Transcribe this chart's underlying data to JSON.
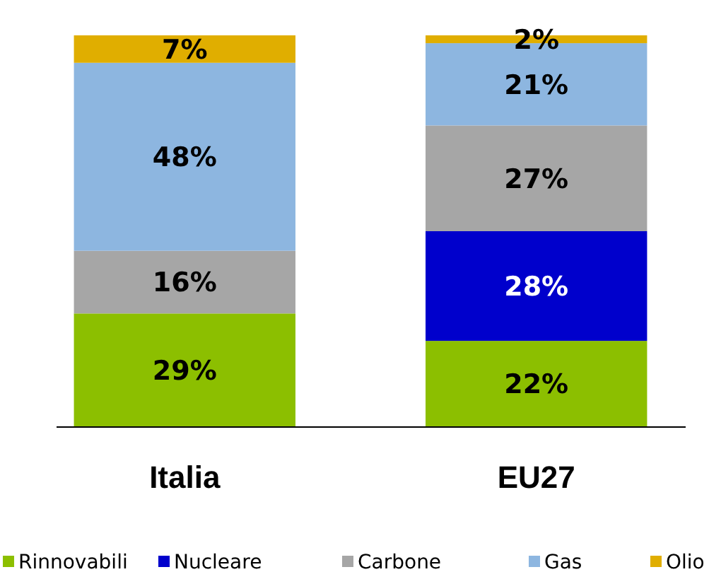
{
  "chart_data": {
    "type": "bar",
    "stacked": true,
    "categories": [
      "Italia",
      "EU27"
    ],
    "ylim": [
      0,
      100
    ],
    "legend": "bottom",
    "series": [
      {
        "name": "Rinnovabili",
        "color": "#8cbf00",
        "values": [
          29,
          22
        ],
        "value_labels": [
          "29%",
          "22%"
        ]
      },
      {
        "name": "Nucleare",
        "color": "#0000cc",
        "values": [
          0,
          28
        ],
        "value_labels": [
          null,
          "28%"
        ]
      },
      {
        "name": "Carbone",
        "color": "#a6a6a6",
        "values": [
          16,
          27
        ],
        "value_labels": [
          "16%",
          "27%"
        ]
      },
      {
        "name": "Gas",
        "color": "#8db6e0",
        "values": [
          48,
          21
        ],
        "value_labels": [
          "48%",
          "21%"
        ]
      },
      {
        "name": "Olio",
        "color": "#e0ae00",
        "values": [
          7,
          2
        ],
        "value_labels": [
          "7%",
          "2%"
        ]
      }
    ]
  }
}
